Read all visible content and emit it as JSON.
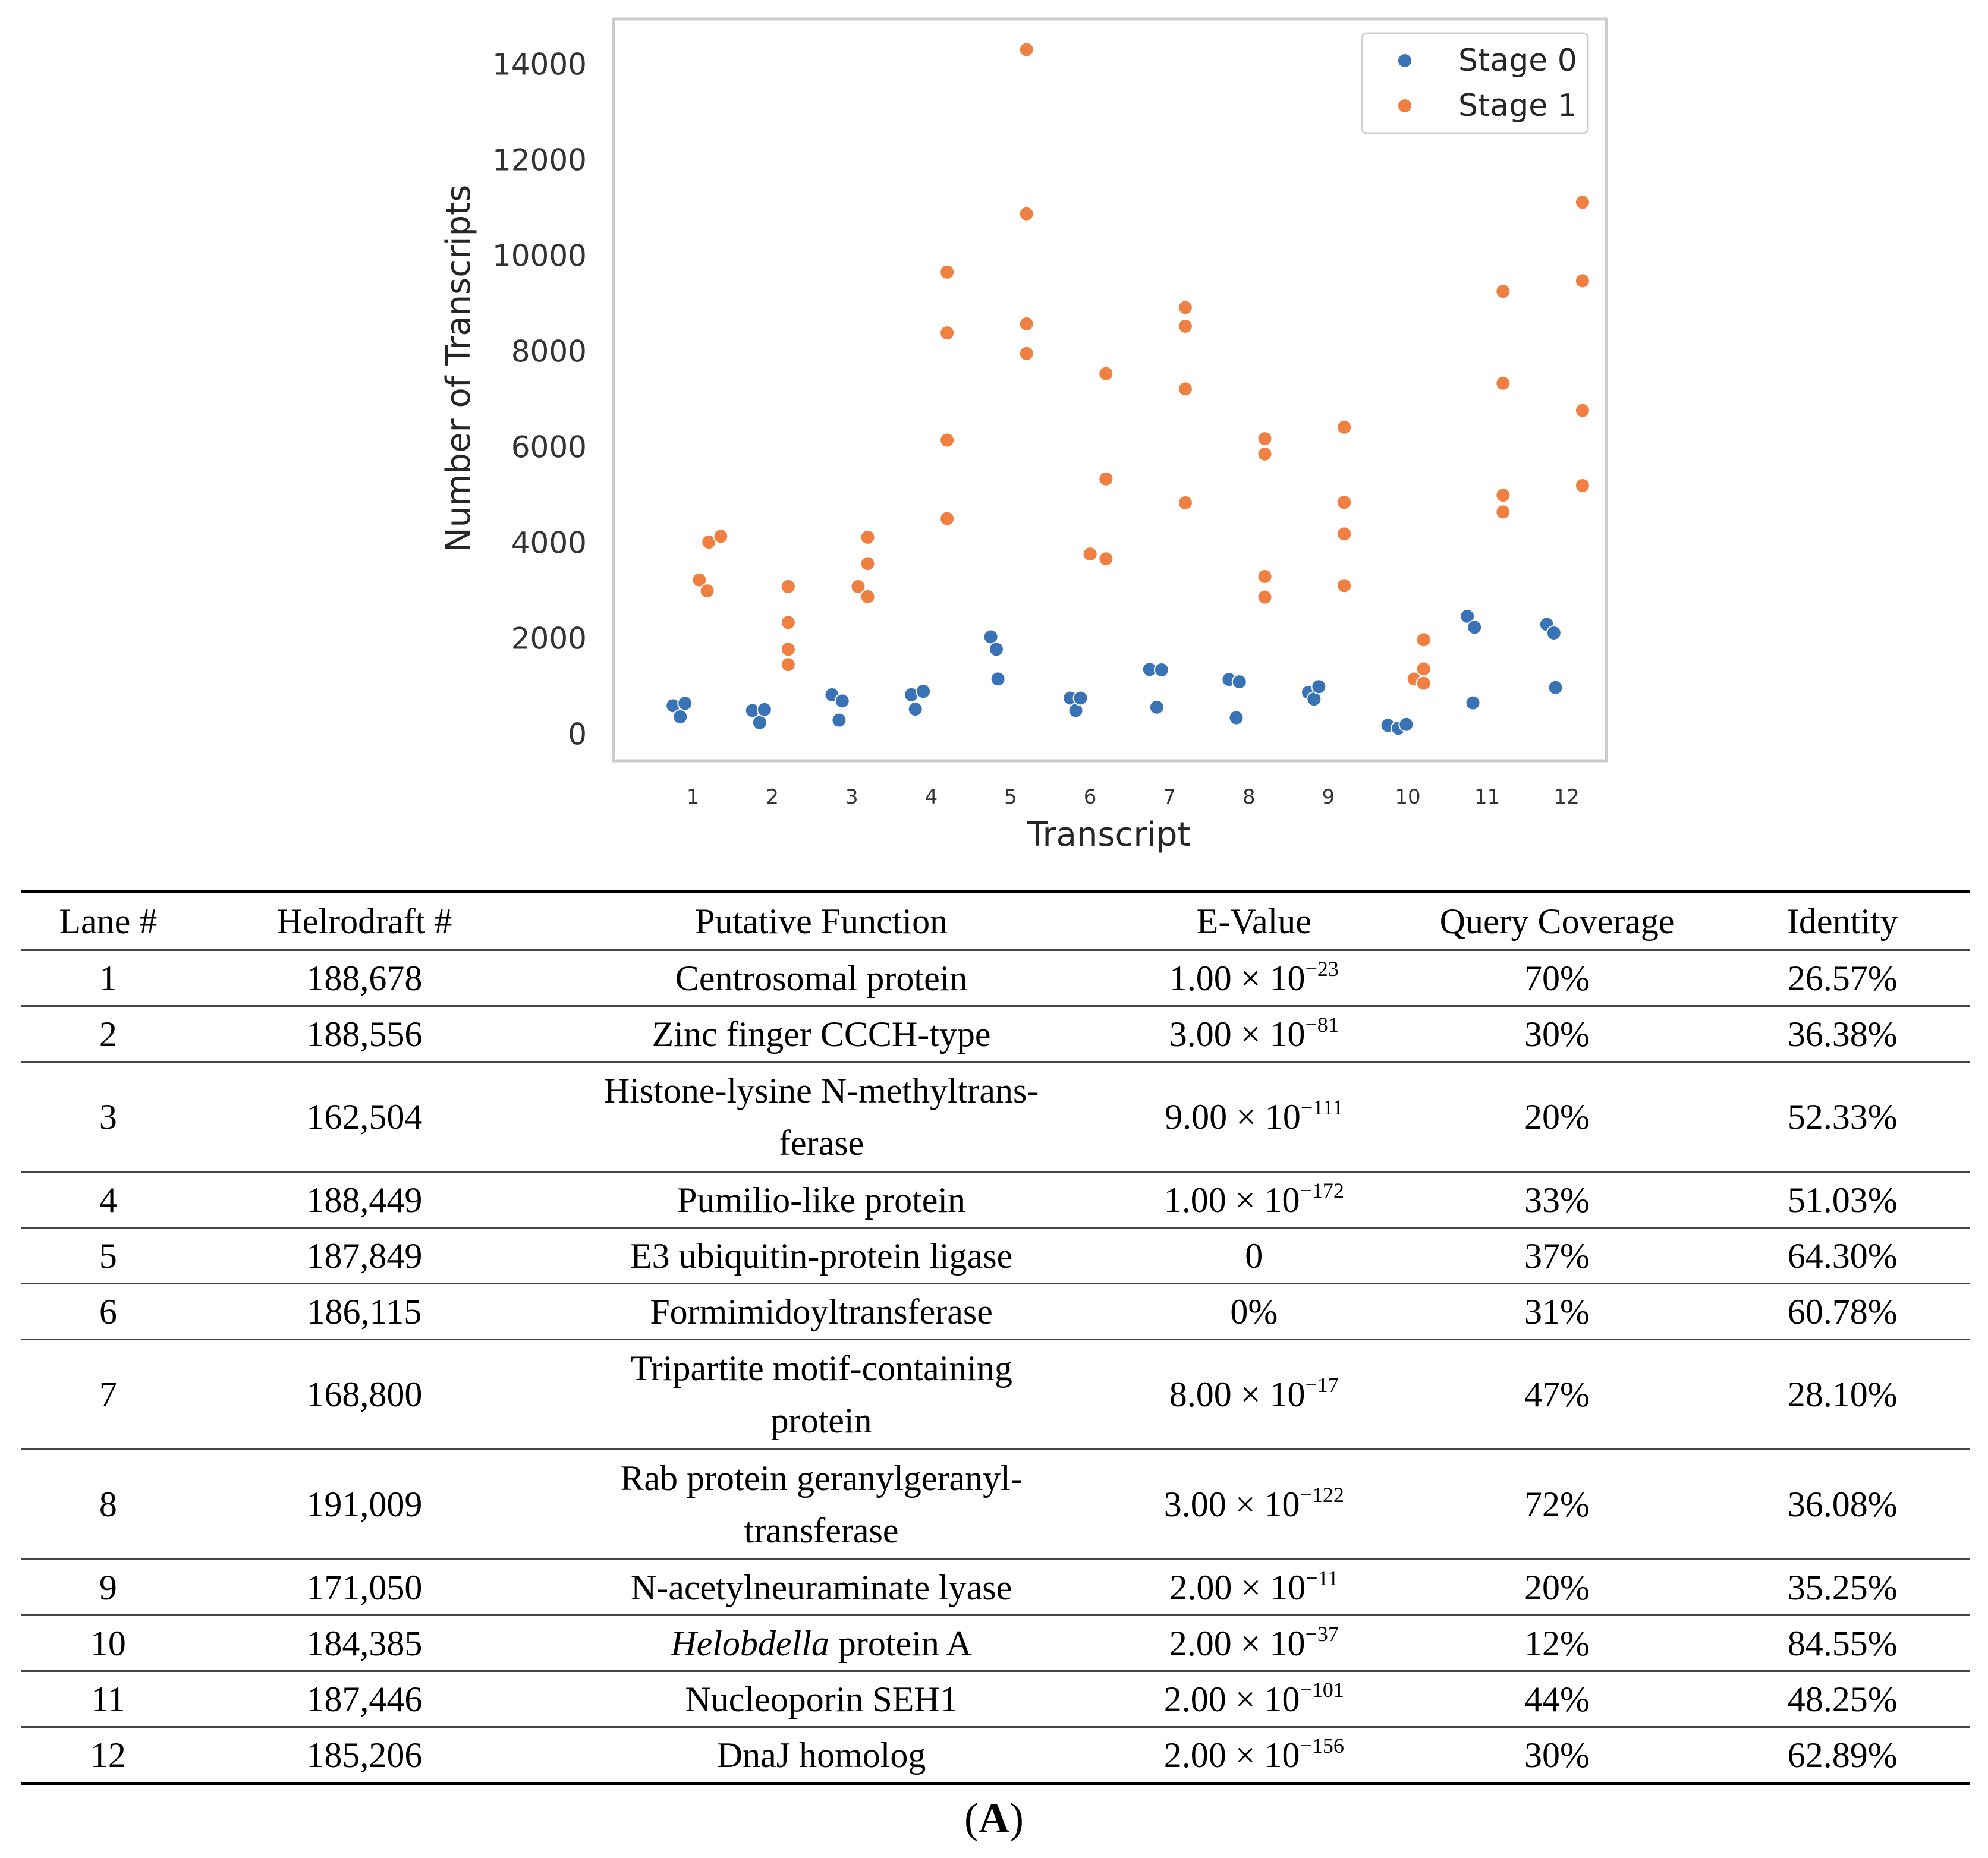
{
  "chart_data": {
    "type": "scatter",
    "title": "",
    "xlabel": "Transcript",
    "ylabel": "Number of Transcripts",
    "categories": [
      "1",
      "2",
      "3",
      "4",
      "5",
      "6",
      "7",
      "8",
      "9",
      "10",
      "11",
      "12"
    ],
    "yticks": [
      0,
      2000,
      4000,
      6000,
      8000,
      10000,
      12000,
      14000
    ],
    "ylim": [
      -550,
      14950
    ],
    "xlim": [
      0.0,
      12.5
    ],
    "grid": false,
    "legend_position": "top-right",
    "series": [
      {
        "name": "Stage 0",
        "color": "#3a73b5",
        "points": [
          [
            0.75,
            600
          ],
          [
            0.84,
            370
          ],
          [
            0.9,
            650
          ],
          [
            1.75,
            500
          ],
          [
            1.84,
            250
          ],
          [
            1.9,
            520
          ],
          [
            2.75,
            830
          ],
          [
            2.84,
            300
          ],
          [
            2.88,
            700
          ],
          [
            3.75,
            830
          ],
          [
            3.8,
            530
          ],
          [
            3.9,
            900
          ],
          [
            4.75,
            2040
          ],
          [
            4.82,
            1780
          ],
          [
            4.84,
            1160
          ],
          [
            5.75,
            760
          ],
          [
            5.82,
            500
          ],
          [
            5.88,
            760
          ],
          [
            6.75,
            1360
          ],
          [
            6.84,
            570
          ],
          [
            6.9,
            1350
          ],
          [
            7.75,
            1150
          ],
          [
            7.84,
            350
          ],
          [
            7.88,
            1100
          ],
          [
            8.75,
            880
          ],
          [
            8.82,
            740
          ],
          [
            8.88,
            1000
          ],
          [
            9.75,
            190
          ],
          [
            9.88,
            130
          ],
          [
            9.98,
            210
          ],
          [
            10.75,
            2470
          ],
          [
            10.82,
            660
          ],
          [
            10.84,
            2240
          ],
          [
            11.75,
            2300
          ],
          [
            11.84,
            2120
          ],
          [
            11.86,
            980
          ]
        ]
      },
      {
        "name": "Stage 1",
        "color": "#ef8041",
        "points": [
          [
            1.08,
            3230
          ],
          [
            1.18,
            3000
          ],
          [
            1.2,
            4020
          ],
          [
            1.35,
            4140
          ],
          [
            2.2,
            3090
          ],
          [
            2.2,
            2340
          ],
          [
            2.2,
            1780
          ],
          [
            2.2,
            1460
          ],
          [
            3.08,
            3090
          ],
          [
            3.2,
            2880
          ],
          [
            3.2,
            3570
          ],
          [
            3.2,
            4120
          ],
          [
            4.2,
            9660
          ],
          [
            4.2,
            8390
          ],
          [
            4.2,
            6150
          ],
          [
            4.2,
            4510
          ],
          [
            5.2,
            14310
          ],
          [
            5.2,
            10880
          ],
          [
            5.2,
            8580
          ],
          [
            5.2,
            7960
          ],
          [
            6.0,
            3770
          ],
          [
            6.2,
            7540
          ],
          [
            6.2,
            5340
          ],
          [
            6.2,
            3670
          ],
          [
            7.2,
            8920
          ],
          [
            7.2,
            8530
          ],
          [
            7.2,
            7220
          ],
          [
            7.2,
            4840
          ],
          [
            8.2,
            6180
          ],
          [
            8.2,
            5860
          ],
          [
            8.2,
            3300
          ],
          [
            8.2,
            2870
          ],
          [
            9.2,
            6420
          ],
          [
            9.2,
            4850
          ],
          [
            9.2,
            4190
          ],
          [
            9.2,
            3110
          ],
          [
            10.08,
            1160
          ],
          [
            10.2,
            1980
          ],
          [
            10.2,
            1370
          ],
          [
            10.2,
            1070
          ],
          [
            11.2,
            9260
          ],
          [
            11.2,
            7340
          ],
          [
            11.2,
            5000
          ],
          [
            11.2,
            4650
          ],
          [
            12.2,
            11120
          ],
          [
            12.2,
            9480
          ],
          [
            12.2,
            6770
          ],
          [
            12.2,
            5200
          ]
        ]
      }
    ]
  },
  "table": {
    "headers": [
      "Lane #",
      "Helrodraft #",
      "Putative Function",
      "E-Value",
      "Query Coverage",
      "Identity"
    ],
    "rows": [
      {
        "lane": "1",
        "hel": "188,678",
        "func": "Centrosomal protein",
        "ev": "1.00 × 10",
        "exp": "−23",
        "qc": "70%",
        "id": "26.57%"
      },
      {
        "lane": "2",
        "hel": "188,556",
        "func": "Zinc finger CCCH-type",
        "ev": "3.00 × 10",
        "exp": "−81",
        "qc": "30%",
        "id": "36.38%"
      },
      {
        "lane": "3",
        "hel": "162,504",
        "func1": "Histone-lysine N-methyltrans-",
        "func2": "ferase",
        "ev": "9.00 × 10",
        "exp": "−111",
        "qc": "20%",
        "id": "52.33%"
      },
      {
        "lane": "4",
        "hel": "188,449",
        "func": "Pumilio-like protein",
        "ev": "1.00 × 10",
        "exp": "−172",
        "qc": "33%",
        "id": "51.03%"
      },
      {
        "lane": "5",
        "hel": "187,849",
        "func": "E3 ubiquitin-protein ligase",
        "ev": "0",
        "qc": "37%",
        "id": "64.30%"
      },
      {
        "lane": "6",
        "hel": "186,115",
        "func": "Formimidoyltransferase",
        "ev": "0%",
        "qc": "31%",
        "id": "60.78%"
      },
      {
        "lane": "7",
        "hel": "168,800",
        "func1": "Tripartite motif-containing",
        "func2": "protein",
        "ev": "8.00 × 10",
        "exp": "−17",
        "qc": "47%",
        "id": "28.10%"
      },
      {
        "lane": "8",
        "hel": "191,009",
        "func1": "Rab protein geranylgeranyl-",
        "func2": "transferase",
        "ev": "3.00 × 10",
        "exp": "−122",
        "qc": "72%",
        "id": "36.08%"
      },
      {
        "lane": "9",
        "hel": "171,050",
        "func": "N-acetylneuraminate lyase",
        "ev": "2.00 × 10",
        "exp": "−11",
        "qc": "20%",
        "id": "35.25%"
      },
      {
        "lane": "10",
        "hel": "184,385",
        "func_italic": "Helobdella",
        "func_rest": " protein A",
        "ev": "2.00 × 10",
        "exp": "−37",
        "qc": "12%",
        "id": "84.55%"
      },
      {
        "lane": "11",
        "hel": "187,446",
        "func": "Nucleoporin SEH1",
        "ev": "2.00 × 10",
        "exp": "−101",
        "qc": "44%",
        "id": "48.25%"
      },
      {
        "lane": "12",
        "hel": "185,206",
        "func": "DnaJ homolog",
        "ev": "2.00 × 10",
        "exp": "−156",
        "qc": "30%",
        "id": "62.89%"
      }
    ]
  },
  "caption": {
    "open": "(",
    "letter": "A",
    "close": ")"
  }
}
